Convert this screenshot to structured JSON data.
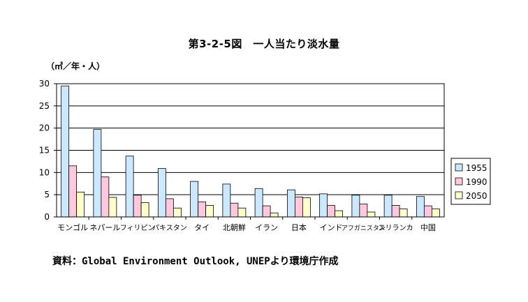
{
  "chart_data": {
    "type": "bar",
    "title": "第3-2-5図　一人当たり淡水量",
    "ylabel": "（㎡／年・人）",
    "ylim": [
      0,
      30
    ],
    "yticks": [
      0,
      5,
      10,
      15,
      20,
      25,
      30
    ],
    "grid": true,
    "legend": "right",
    "categories": [
      "モンゴル",
      "ネパール",
      "フィリピン",
      "パキスタン",
      "タイ",
      "北朝鮮",
      "イラン",
      "日本",
      "インド",
      "アフガニスタン",
      "スリランカ",
      "中国"
    ],
    "series": [
      {
        "name": "1955",
        "color": "#cce8ff",
        "values": [
          29.5,
          19.7,
          13.7,
          10.9,
          8.0,
          7.4,
          6.4,
          6.1,
          5.2,
          4.9,
          4.9,
          4.6
        ]
      },
      {
        "name": "1990",
        "color": "#ffc8dc",
        "values": [
          11.5,
          9.0,
          4.9,
          4.1,
          3.4,
          3.1,
          2.5,
          4.5,
          2.6,
          2.9,
          2.6,
          2.5
        ]
      },
      {
        "name": "2050",
        "color": "#ffffcc",
        "values": [
          5.6,
          4.4,
          3.2,
          2.0,
          2.6,
          2.0,
          0.9,
          4.3,
          1.4,
          1.1,
          1.8,
          1.8
        ]
      }
    ],
    "source": "資料：Global Environment Outlook, UNEPより環境庁作成"
  }
}
